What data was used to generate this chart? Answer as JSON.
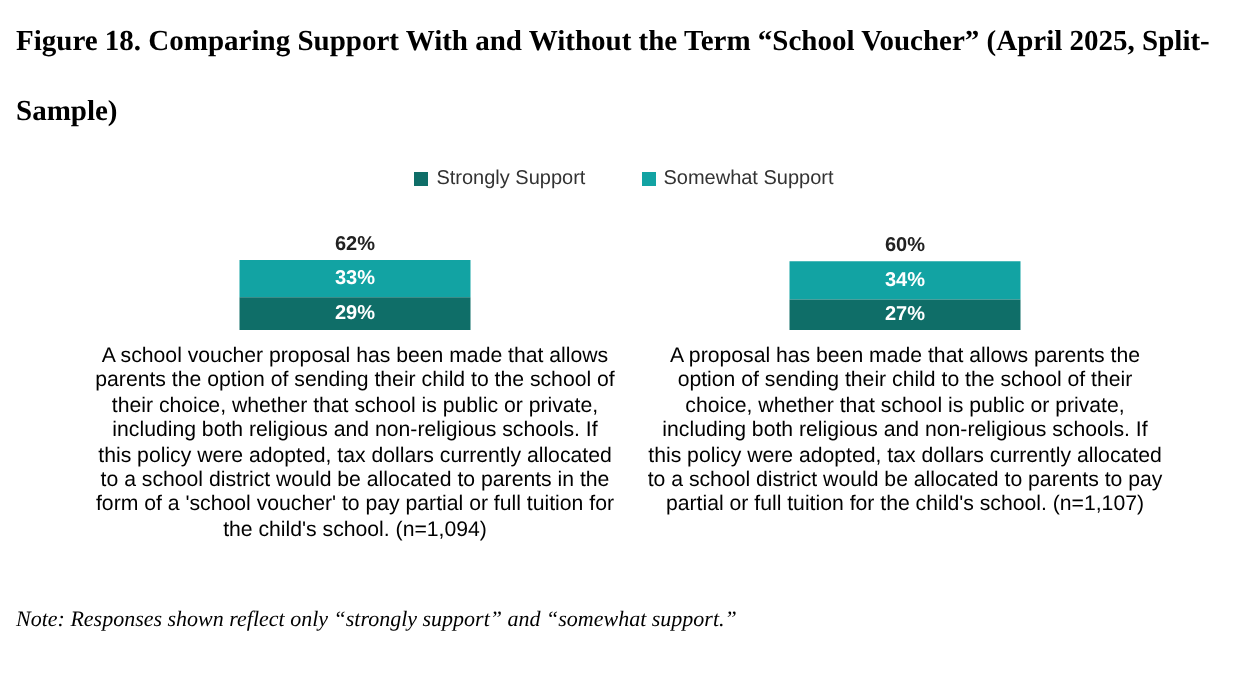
{
  "chart_data": {
    "type": "bar",
    "title": "Figure 18. Comparing Support With and Without the Term “School Voucher” (April 2025, Split-Sample)",
    "categories": [
      "A school voucher proposal has been made that allows parents the option of sending their child to the school of their choice, whether that school is public or private, including both religious and non-religious schools. If this policy were adopted, tax dollars currently allocated to a school district would be allocated to parents in the form of a 'school voucher' to pay partial or full tuition for the child's school. (n=1,094)",
      "A proposal has been made that allows parents the option of sending their child to the school of their choice, whether that school is public or private, including both religious and non-religious schools. If this policy were adopted, tax dollars currently allocated to a school district would be allocated to parents to pay partial or full tuition for the child's school. (n=1,107)"
    ],
    "stacked": true,
    "series": [
      {
        "name": "Strongly Support",
        "color": "#0f6e68",
        "values": [
          29,
          27
        ],
        "value_labels": [
          "29%",
          "27%"
        ]
      },
      {
        "name": "Somewhat Support",
        "color": "#12a3a3",
        "values": [
          33,
          34
        ],
        "value_labels": [
          "33%",
          "34%"
        ]
      }
    ],
    "totals": [
      "62%",
      "60%"
    ],
    "legend": "top",
    "annotations": [
      "Note: Responses shown reflect only “strongly support” and “somewhat support.”"
    ]
  }
}
